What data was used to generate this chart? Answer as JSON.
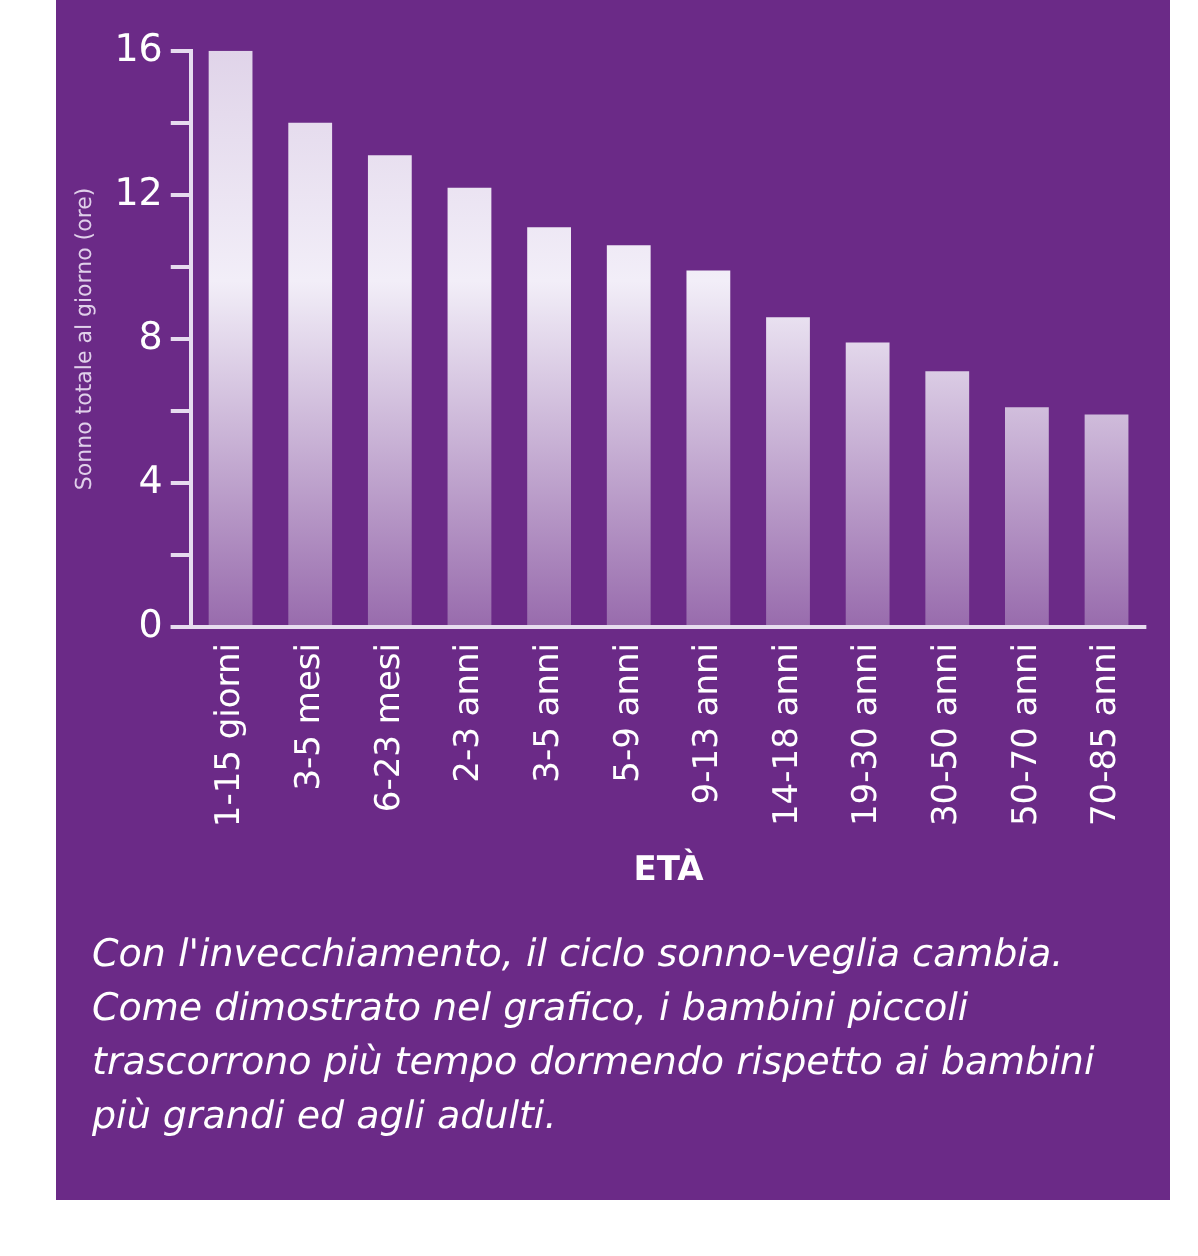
{
  "chart_data": {
    "type": "bar",
    "xlabel": "ETÀ",
    "ylabel": "Sonno totale al giorno (ore)",
    "categories": [
      "1-15 giorni",
      "3-5 mesi",
      "6-23 mesi",
      "2-3 anni",
      "3-5 anni",
      "5-9 anni",
      "9-13 anni",
      "14-18 anni",
      "19-30 anni",
      "30-50 anni",
      "50-70 anni",
      "70-85 anni"
    ],
    "values": [
      16,
      14,
      13.1,
      12.2,
      11.1,
      10.6,
      9.9,
      8.6,
      7.9,
      7.1,
      6.1,
      5.9
    ],
    "color": "#f2eef8",
    "ylim": [
      0,
      16
    ],
    "yticks": [
      0,
      {
        "value": 2,
        "label": null
      },
      4,
      {
        "value": 6,
        "label": null
      },
      8,
      {
        "value": 10,
        "label": null
      },
      12,
      {
        "value": 14,
        "label": null
      },
      16
    ],
    "grid": false,
    "annotations": [
      "Con l'invecchiamento, il ciclo sonno-veglia cambia. Come dimostrato nel grafico, i bambini piccoli trascorrono più tempo dormendo rispetto ai bambini più grandi ed agli adulti."
    ]
  }
}
